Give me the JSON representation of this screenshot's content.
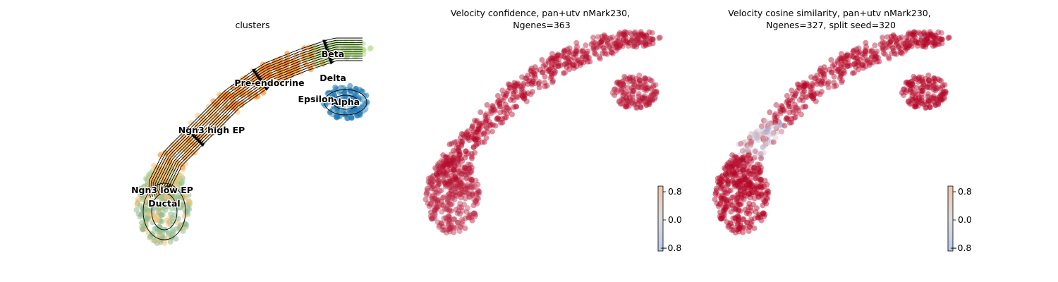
{
  "figure": {
    "background": "#ffffff"
  },
  "chart_data": [
    {
      "type": "scatter",
      "subtype": "embedding-with-velocity-streamlines",
      "title": "clusters",
      "axes_visible": false,
      "clusters": [
        {
          "name": "Ductal",
          "color": "#8fbc8f",
          "label": "Ductal"
        },
        {
          "name": "Ngn3 low EP",
          "color": "#a6cf8f",
          "label": "Ngn3 low EP"
        },
        {
          "name": "Ngn3 high EP",
          "color": "#fdbf6f",
          "label": "Ngn3 high EP"
        },
        {
          "name": "Pre-endocrine",
          "color": "#ff7f0e",
          "label": "Pre-endocrine"
        },
        {
          "name": "Beta",
          "color": "#b2df8a",
          "label": "Beta"
        },
        {
          "name": "Alpha",
          "color": "#1f78b4",
          "label": "Alpha"
        },
        {
          "name": "Delta",
          "color": "#a6cee3",
          "label": "Delta"
        },
        {
          "name": "Epsilon",
          "color": "#cab2d6",
          "label": "Epsilon"
        }
      ],
      "stream_color": "#000000"
    },
    {
      "type": "scatter",
      "subtype": "embedding-colored-by-value",
      "title": "Velocity confidence, pan+utv nMark230,\nNgenes=363",
      "title_lines": [
        "Velocity confidence, pan+utv nMark230,",
        "Ngenes=363"
      ],
      "axes_visible": false,
      "colormap": "coolwarm",
      "colorbar": {
        "ticks": [
          "0.8",
          "0.0",
          "−0.8"
        ],
        "range": [
          -0.9,
          0.9
        ]
      },
      "region_values": {
        "ductal": 0.75,
        "trunk": 0.9,
        "arm": 0.82,
        "lobe": 0.8
      }
    },
    {
      "type": "scatter",
      "subtype": "embedding-colored-by-value",
      "title": "Velocity cosine similarity, pan+utv nMark230,\nNgenes=327, split seed=320",
      "title_lines": [
        "Velocity cosine similarity, pan+utv nMark230,",
        "Ngenes=327, split seed=320"
      ],
      "axes_visible": false,
      "colormap": "coolwarm",
      "colorbar": {
        "ticks": [
          "0.8",
          "0.0",
          "−0.8"
        ],
        "range": [
          -0.9,
          0.9
        ]
      },
      "region_values": {
        "ductal": 0.98,
        "trunk": 0.9,
        "arm": 0.88,
        "lobe": 0.9,
        "kink": 0.2
      }
    }
  ]
}
